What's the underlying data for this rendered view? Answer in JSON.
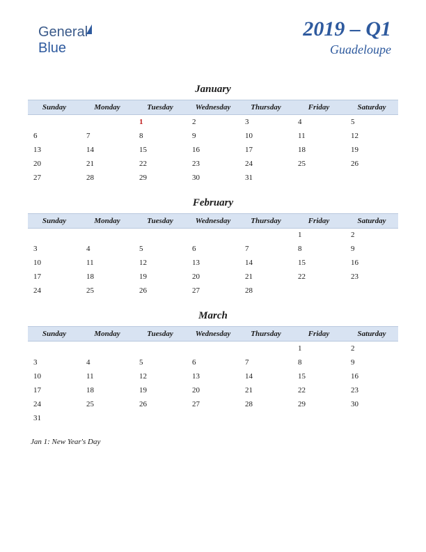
{
  "logo": {
    "part1": "General",
    "part2": "Blue"
  },
  "header": {
    "title": "2019 – Q1",
    "subtitle": "Guadeloupe"
  },
  "styling": {
    "page_bg": "#ffffff",
    "header_color": "#2e5a9e",
    "dayheader_bg": "#d8e3f2",
    "dayheader_border": "#b8c8de",
    "text_color": "#1a1a1a",
    "holiday_color": "#c02020",
    "title_fontsize": 30,
    "subtitle_fontsize": 18,
    "month_fontsize": 15,
    "dayheader_fontsize": 11,
    "cell_fontsize": 11
  },
  "day_headers": [
    "Sunday",
    "Monday",
    "Tuesday",
    "Wednesday",
    "Thursday",
    "Friday",
    "Saturday"
  ],
  "months": [
    {
      "name": "January",
      "weeks": [
        [
          "",
          "",
          "1",
          "2",
          "3",
          "4",
          "5"
        ],
        [
          "6",
          "7",
          "8",
          "9",
          "10",
          "11",
          "12"
        ],
        [
          "13",
          "14",
          "15",
          "16",
          "17",
          "18",
          "19"
        ],
        [
          "20",
          "21",
          "22",
          "23",
          "24",
          "25",
          "26"
        ],
        [
          "27",
          "28",
          "29",
          "30",
          "31",
          "",
          ""
        ]
      ],
      "holidays": [
        [
          0,
          2
        ]
      ]
    },
    {
      "name": "February",
      "weeks": [
        [
          "",
          "",
          "",
          "",
          "",
          "1",
          "2"
        ],
        [
          "3",
          "4",
          "5",
          "6",
          "7",
          "8",
          "9"
        ],
        [
          "10",
          "11",
          "12",
          "13",
          "14",
          "15",
          "16"
        ],
        [
          "17",
          "18",
          "19",
          "20",
          "21",
          "22",
          "23"
        ],
        [
          "24",
          "25",
          "26",
          "27",
          "28",
          "",
          ""
        ]
      ],
      "holidays": []
    },
    {
      "name": "March",
      "weeks": [
        [
          "",
          "",
          "",
          "",
          "",
          "1",
          "2"
        ],
        [
          "3",
          "4",
          "5",
          "6",
          "7",
          "8",
          "9"
        ],
        [
          "10",
          "11",
          "12",
          "13",
          "14",
          "15",
          "16"
        ],
        [
          "17",
          "18",
          "19",
          "20",
          "21",
          "22",
          "23"
        ],
        [
          "24",
          "25",
          "26",
          "27",
          "28",
          "29",
          "30"
        ],
        [
          "31",
          "",
          "",
          "",
          "",
          "",
          ""
        ]
      ],
      "holidays": []
    }
  ],
  "footnote": "Jan 1: New Year's Day"
}
